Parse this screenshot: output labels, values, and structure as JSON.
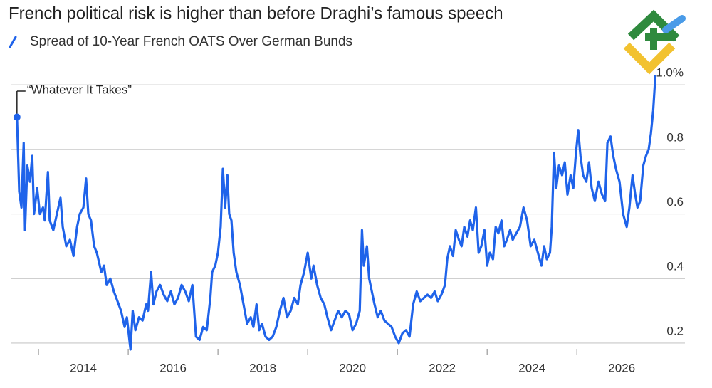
{
  "chart_data": {
    "type": "line",
    "title": "French political risk is higher than before Draghi’s famous speech",
    "annotation": "“Whatever It Takes”",
    "x": [
      2012.52,
      2012.57,
      2012.62,
      2012.67,
      2012.7,
      2012.75,
      2012.81,
      2012.86,
      2012.9,
      2012.97,
      2013.03,
      2013.1,
      2013.14,
      2013.21,
      2013.25,
      2013.33,
      2013.41,
      2013.49,
      2013.54,
      2013.62,
      2013.7,
      2013.78,
      2013.86,
      2013.92,
      2014.0,
      2014.06,
      2014.11,
      2014.17,
      2014.24,
      2014.3,
      2014.4,
      2014.46,
      2014.52,
      2014.6,
      2014.68,
      2014.76,
      2014.84,
      2014.92,
      2014.97,
      2015.05,
      2015.1,
      2015.16,
      2015.24,
      2015.32,
      2015.4,
      2015.44,
      2015.51,
      2015.56,
      2015.63,
      2015.71,
      2015.79,
      2015.87,
      2015.95,
      2016.03,
      2016.11,
      2016.19,
      2016.27,
      2016.35,
      2016.43,
      2016.51,
      2016.59,
      2016.67,
      2016.75,
      2016.83,
      2016.87,
      2016.94,
      2017.0,
      2017.06,
      2017.11,
      2017.16,
      2017.21,
      2017.25,
      2017.3,
      2017.35,
      2017.41,
      2017.49,
      2017.57,
      2017.65,
      2017.73,
      2017.79,
      2017.86,
      2017.92,
      2017.98,
      2018.06,
      2018.14,
      2018.22,
      2018.3,
      2018.38,
      2018.46,
      2018.54,
      2018.62,
      2018.7,
      2018.78,
      2018.84,
      2018.92,
      2019.0,
      2019.08,
      2019.13,
      2019.21,
      2019.29,
      2019.37,
      2019.44,
      2019.52,
      2019.6,
      2019.68,
      2019.76,
      2019.84,
      2019.92,
      2020.0,
      2020.08,
      2020.16,
      2020.21,
      2020.25,
      2020.32,
      2020.37,
      2020.43,
      2020.49,
      2020.56,
      2020.63,
      2020.71,
      2020.79,
      2020.87,
      2020.95,
      2021.03,
      2021.11,
      2021.19,
      2021.27,
      2021.35,
      2021.43,
      2021.51,
      2021.59,
      2021.67,
      2021.75,
      2021.83,
      2021.9,
      2021.98,
      2022.06,
      2022.11,
      2022.17,
      2022.24,
      2022.3,
      2022.37,
      2022.43,
      2022.49,
      2022.56,
      2022.62,
      2022.68,
      2022.75,
      2022.81,
      2022.87,
      2022.94,
      2023.0,
      2023.06,
      2023.13,
      2023.19,
      2023.25,
      2023.32,
      2023.38,
      2023.44,
      2023.51,
      2023.57,
      2023.65,
      2023.73,
      2023.81,
      2023.89,
      2023.97,
      2024.05,
      2024.13,
      2024.21,
      2024.27,
      2024.33,
      2024.4,
      2024.44,
      2024.49,
      2024.54,
      2024.6,
      2024.67,
      2024.73,
      2024.79,
      2024.86,
      2024.92,
      2024.98,
      2025.03,
      2025.08,
      2025.14,
      2025.21,
      2025.27,
      2025.33,
      2025.4,
      2025.48,
      2025.56,
      2025.63,
      2025.68,
      2025.75,
      2025.81,
      2025.87,
      2025.95,
      2026.03,
      2026.11,
      2026.17,
      2026.24,
      2026.3,
      2026.35,
      2026.41,
      2026.48,
      2026.54,
      2026.6,
      2026.65,
      2026.7,
      2026.75
    ],
    "series": [
      {
        "name": "Spread of 10-Year French OATS Over German Bunds",
        "color": "#1f63ea",
        "values": [
          0.9,
          0.67,
          0.62,
          0.82,
          0.55,
          0.75,
          0.7,
          0.78,
          0.6,
          0.68,
          0.6,
          0.62,
          0.58,
          0.73,
          0.58,
          0.55,
          0.6,
          0.65,
          0.56,
          0.5,
          0.52,
          0.47,
          0.56,
          0.6,
          0.62,
          0.71,
          0.6,
          0.58,
          0.5,
          0.48,
          0.42,
          0.44,
          0.38,
          0.4,
          0.36,
          0.33,
          0.3,
          0.25,
          0.28,
          0.18,
          0.3,
          0.24,
          0.28,
          0.27,
          0.32,
          0.3,
          0.42,
          0.32,
          0.36,
          0.38,
          0.35,
          0.33,
          0.36,
          0.32,
          0.34,
          0.38,
          0.36,
          0.33,
          0.38,
          0.22,
          0.21,
          0.25,
          0.24,
          0.34,
          0.42,
          0.44,
          0.48,
          0.56,
          0.74,
          0.62,
          0.72,
          0.6,
          0.58,
          0.48,
          0.42,
          0.38,
          0.32,
          0.26,
          0.28,
          0.25,
          0.32,
          0.24,
          0.26,
          0.22,
          0.21,
          0.22,
          0.25,
          0.3,
          0.34,
          0.28,
          0.3,
          0.34,
          0.32,
          0.38,
          0.42,
          0.48,
          0.4,
          0.44,
          0.38,
          0.34,
          0.32,
          0.28,
          0.24,
          0.27,
          0.3,
          0.28,
          0.3,
          0.29,
          0.24,
          0.26,
          0.3,
          0.55,
          0.44,
          0.5,
          0.4,
          0.36,
          0.32,
          0.28,
          0.3,
          0.27,
          0.26,
          0.25,
          0.22,
          0.2,
          0.23,
          0.24,
          0.22,
          0.32,
          0.36,
          0.33,
          0.34,
          0.35,
          0.34,
          0.36,
          0.33,
          0.35,
          0.38,
          0.46,
          0.5,
          0.47,
          0.55,
          0.52,
          0.5,
          0.56,
          0.53,
          0.58,
          0.55,
          0.62,
          0.48,
          0.5,
          0.55,
          0.44,
          0.48,
          0.46,
          0.56,
          0.54,
          0.58,
          0.5,
          0.52,
          0.55,
          0.52,
          0.54,
          0.56,
          0.62,
          0.58,
          0.5,
          0.52,
          0.48,
          0.44,
          0.5,
          0.46,
          0.48,
          0.56,
          0.79,
          0.68,
          0.75,
          0.72,
          0.76,
          0.66,
          0.72,
          0.68,
          0.79,
          0.86,
          0.78,
          0.72,
          0.7,
          0.76,
          0.68,
          0.64,
          0.7,
          0.66,
          0.64,
          0.82,
          0.84,
          0.78,
          0.74,
          0.7,
          0.6,
          0.56,
          0.62,
          0.72,
          0.66,
          0.62,
          0.64,
          0.75,
          0.78,
          0.8,
          0.85,
          0.92,
          1.03
        ]
      }
    ],
    "xlim": [
      2012.38,
      2026.98
    ],
    "xticks": [
      2014,
      2016,
      2018,
      2020,
      2022,
      2024,
      2026
    ],
    "xminor_ticks": [
      2013,
      2015,
      2017,
      2019,
      2021,
      2023,
      2025
    ],
    "ylim": [
      0.18,
      1.06
    ],
    "yticks": [
      0.2,
      0.4,
      0.6,
      0.8,
      {
        "value": 1.0,
        "label": "1.0%"
      }
    ],
    "grid": true,
    "legend": "top-left"
  }
}
